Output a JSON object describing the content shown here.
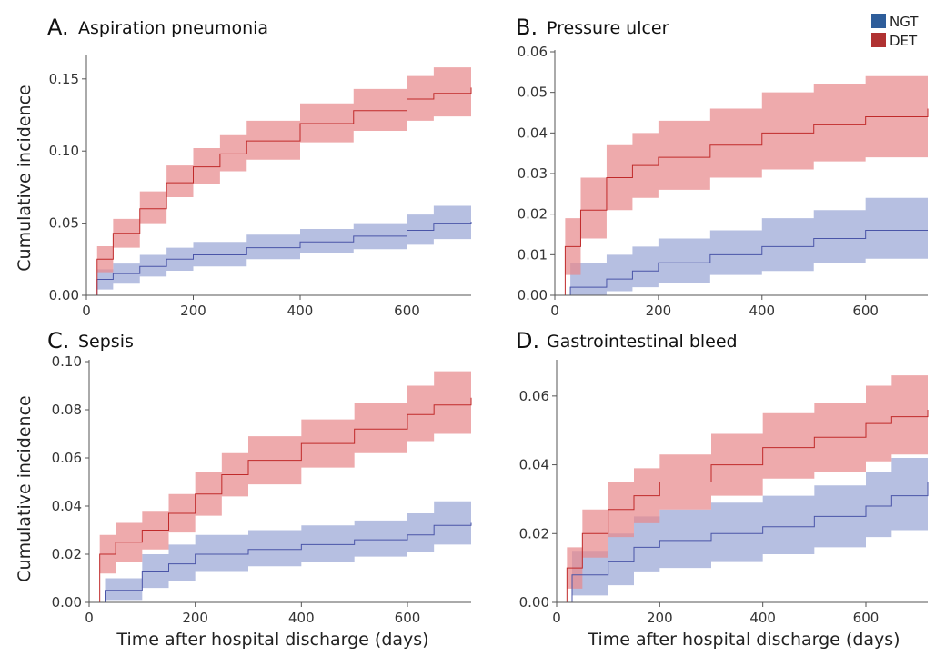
{
  "legend": [
    {
      "label": "NGT",
      "color": "#2e5d9a"
    },
    {
      "label": "DET",
      "color": "#b03232"
    }
  ],
  "colors": {
    "ngt_line": "#4a55a8",
    "ngt_band": "#9aa6d6",
    "det_line": "#c02a2a",
    "det_band": "#e8898c"
  },
  "shared_labels": {
    "ylabel": "Cumulative incidence",
    "xlabel": "Time after hospital discharge (days)"
  },
  "chart_data": [
    {
      "type": "line",
      "panel": "A.",
      "title": "Aspiration pneumonia",
      "xlim": [
        0,
        720
      ],
      "ylim": [
        0,
        0.165
      ],
      "xticks": [
        0,
        200,
        400,
        600
      ],
      "yticks": [
        0.0,
        0.05,
        0.1,
        0.15
      ],
      "ytick_labels": [
        "0.00",
        "0.05",
        "0.10",
        "0.15"
      ],
      "series": [
        {
          "name": "NGT",
          "x": [
            0,
            20,
            50,
            100,
            150,
            200,
            300,
            400,
            500,
            600,
            650,
            720
          ],
          "y": [
            0,
            0.011,
            0.015,
            0.02,
            0.025,
            0.028,
            0.033,
            0.037,
            0.041,
            0.045,
            0.05,
            0.051
          ],
          "lower": [
            0,
            0.004,
            0.008,
            0.013,
            0.017,
            0.02,
            0.025,
            0.029,
            0.032,
            0.035,
            0.039,
            0.04
          ],
          "upper": [
            0,
            0.018,
            0.022,
            0.028,
            0.033,
            0.037,
            0.042,
            0.046,
            0.05,
            0.056,
            0.062,
            0.063
          ]
        },
        {
          "name": "DET",
          "x": [
            0,
            20,
            50,
            100,
            150,
            200,
            250,
            300,
            400,
            500,
            600,
            650,
            720
          ],
          "y": [
            0,
            0.025,
            0.043,
            0.06,
            0.078,
            0.089,
            0.098,
            0.107,
            0.119,
            0.128,
            0.136,
            0.14,
            0.144
          ],
          "lower": [
            0,
            0.016,
            0.033,
            0.05,
            0.068,
            0.077,
            0.086,
            0.094,
            0.106,
            0.114,
            0.121,
            0.124,
            0.126
          ],
          "upper": [
            0,
            0.034,
            0.053,
            0.072,
            0.09,
            0.102,
            0.111,
            0.121,
            0.133,
            0.143,
            0.152,
            0.158,
            0.162
          ]
        }
      ]
    },
    {
      "type": "line",
      "panel": "B.",
      "title": "Pressure ulcer",
      "xlim": [
        0,
        720
      ],
      "ylim": [
        0,
        0.06
      ],
      "xticks": [
        0,
        200,
        400,
        600
      ],
      "yticks": [
        0.0,
        0.01,
        0.02,
        0.03,
        0.04,
        0.05,
        0.06
      ],
      "ytick_labels": [
        "0.00",
        "0.01",
        "0.02",
        "0.03",
        "0.04",
        "0.05",
        "0.06"
      ],
      "series": [
        {
          "name": "NGT",
          "x": [
            0,
            30,
            100,
            150,
            200,
            300,
            400,
            500,
            600,
            720
          ],
          "y": [
            0,
            0.002,
            0.004,
            0.006,
            0.008,
            0.01,
            0.012,
            0.014,
            0.016,
            0.016
          ],
          "lower": [
            0,
            0.0,
            0.001,
            0.002,
            0.003,
            0.005,
            0.006,
            0.008,
            0.009,
            0.009
          ],
          "upper": [
            0,
            0.008,
            0.01,
            0.012,
            0.014,
            0.016,
            0.019,
            0.021,
            0.024,
            0.024
          ]
        },
        {
          "name": "DET",
          "x": [
            0,
            20,
            50,
            100,
            150,
            200,
            300,
            400,
            500,
            600,
            720
          ],
          "y": [
            0,
            0.012,
            0.021,
            0.029,
            0.032,
            0.034,
            0.037,
            0.04,
            0.042,
            0.044,
            0.046
          ],
          "lower": [
            0,
            0.005,
            0.014,
            0.021,
            0.024,
            0.026,
            0.029,
            0.031,
            0.033,
            0.034,
            0.036
          ],
          "upper": [
            0,
            0.019,
            0.029,
            0.037,
            0.04,
            0.043,
            0.046,
            0.05,
            0.052,
            0.054,
            0.058
          ]
        }
      ]
    },
    {
      "type": "line",
      "panel": "C.",
      "title": "Sepsis",
      "xlim": [
        0,
        720
      ],
      "ylim": [
        0,
        0.1
      ],
      "xticks": [
        0,
        200,
        400,
        600
      ],
      "yticks": [
        0.0,
        0.02,
        0.04,
        0.06,
        0.08,
        0.1
      ],
      "ytick_labels": [
        "0.00",
        "0.02",
        "0.04",
        "0.06",
        "0.08",
        "0.10"
      ],
      "series": [
        {
          "name": "NGT",
          "x": [
            0,
            30,
            100,
            150,
            200,
            300,
            400,
            500,
            600,
            650,
            720
          ],
          "y": [
            0,
            0.005,
            0.013,
            0.016,
            0.02,
            0.022,
            0.024,
            0.026,
            0.028,
            0.032,
            0.033
          ],
          "lower": [
            0,
            0.001,
            0.006,
            0.009,
            0.013,
            0.015,
            0.017,
            0.019,
            0.021,
            0.024,
            0.025
          ],
          "upper": [
            0,
            0.01,
            0.02,
            0.024,
            0.028,
            0.03,
            0.032,
            0.034,
            0.037,
            0.042,
            0.043
          ]
        },
        {
          "name": "DET",
          "x": [
            0,
            20,
            50,
            100,
            150,
            200,
            250,
            300,
            400,
            500,
            600,
            650,
            720
          ],
          "y": [
            0,
            0.02,
            0.025,
            0.03,
            0.037,
            0.045,
            0.053,
            0.059,
            0.066,
            0.072,
            0.078,
            0.082,
            0.085
          ],
          "lower": [
            0,
            0.012,
            0.017,
            0.022,
            0.029,
            0.036,
            0.044,
            0.049,
            0.056,
            0.062,
            0.067,
            0.07,
            0.072
          ],
          "upper": [
            0,
            0.028,
            0.033,
            0.038,
            0.045,
            0.054,
            0.062,
            0.069,
            0.076,
            0.083,
            0.09,
            0.096,
            0.1
          ]
        }
      ]
    },
    {
      "type": "line",
      "panel": "D.",
      "title": "Gastrointestinal bleed",
      "xlim": [
        0,
        720
      ],
      "ylim": [
        0,
        0.07
      ],
      "xticks": [
        0,
        200,
        400,
        600
      ],
      "yticks": [
        0.0,
        0.02,
        0.04,
        0.06
      ],
      "ytick_labels": [
        "0.00",
        "0.02",
        "0.04",
        "0.06"
      ],
      "series": [
        {
          "name": "NGT",
          "x": [
            0,
            30,
            100,
            150,
            200,
            300,
            400,
            500,
            600,
            650,
            720
          ],
          "y": [
            0,
            0.008,
            0.012,
            0.016,
            0.018,
            0.02,
            0.022,
            0.025,
            0.028,
            0.031,
            0.035
          ],
          "lower": [
            0,
            0.002,
            0.005,
            0.009,
            0.01,
            0.012,
            0.014,
            0.016,
            0.019,
            0.021,
            0.024
          ],
          "upper": [
            0,
            0.015,
            0.02,
            0.025,
            0.027,
            0.029,
            0.031,
            0.034,
            0.038,
            0.042,
            0.046
          ]
        },
        {
          "name": "DET",
          "x": [
            0,
            20,
            50,
            100,
            150,
            200,
            300,
            400,
            500,
            600,
            650,
            720
          ],
          "y": [
            0,
            0.01,
            0.02,
            0.027,
            0.031,
            0.035,
            0.04,
            0.045,
            0.048,
            0.052,
            0.054,
            0.056
          ],
          "lower": [
            0,
            0.004,
            0.013,
            0.019,
            0.023,
            0.027,
            0.031,
            0.036,
            0.038,
            0.041,
            0.043,
            0.046
          ],
          "upper": [
            0,
            0.016,
            0.027,
            0.035,
            0.039,
            0.043,
            0.049,
            0.055,
            0.058,
            0.063,
            0.066,
            0.069
          ]
        }
      ]
    }
  ]
}
